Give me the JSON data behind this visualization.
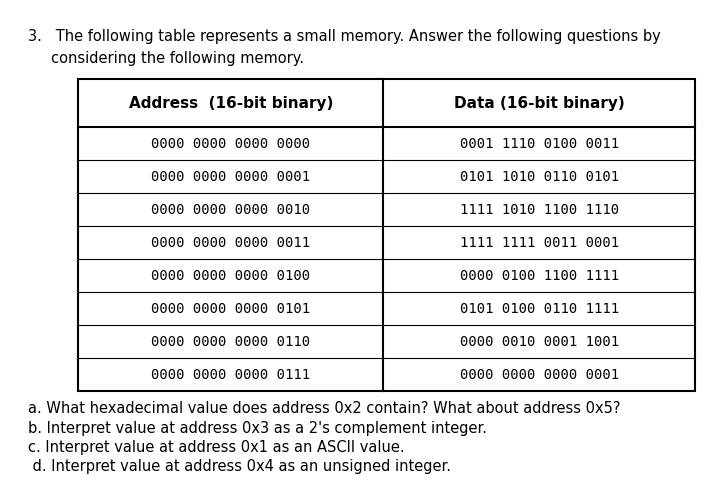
{
  "title_line1": "3.   The following table represents a small memory. Answer the following questions by",
  "title_line2": "     considering the following memory.",
  "col_headers": [
    "Address  (16-bit binary)",
    "Data (16-bit binary)"
  ],
  "rows": [
    [
      "0000 0000 0000 0000",
      "0001 1110 0100 0011"
    ],
    [
      "0000 0000 0000 0001",
      "0101 1010 0110 0101"
    ],
    [
      "0000 0000 0000 0010",
      "1111 1010 1100 1110"
    ],
    [
      "0000 0000 0000 0011",
      "1111 1111 0011 0001"
    ],
    [
      "0000 0000 0000 0100",
      "0000 0100 1100 1111"
    ],
    [
      "0000 0000 0000 0101",
      "0101 0100 0110 1111"
    ],
    [
      "0000 0000 0000 0110",
      "0000 0010 0001 1001"
    ],
    [
      "0000 0000 0000 0111",
      "0000 0000 0000 0001"
    ]
  ],
  "questions": [
    "a. What hexadecimal value does address 0x2 contain? What about address 0x5?",
    "b. Interpret value at address 0x3 as a 2's complement integer.",
    "c. Interpret value at address 0x1 as an ASCII value.",
    " d. Interpret value at address 0x4 as an unsigned integer."
  ],
  "bg_color": "#ffffff",
  "border_color": "#000000",
  "title_fontsize": 10.5,
  "header_fontsize": 11,
  "data_fontsize": 10,
  "question_fontsize": 10.5
}
